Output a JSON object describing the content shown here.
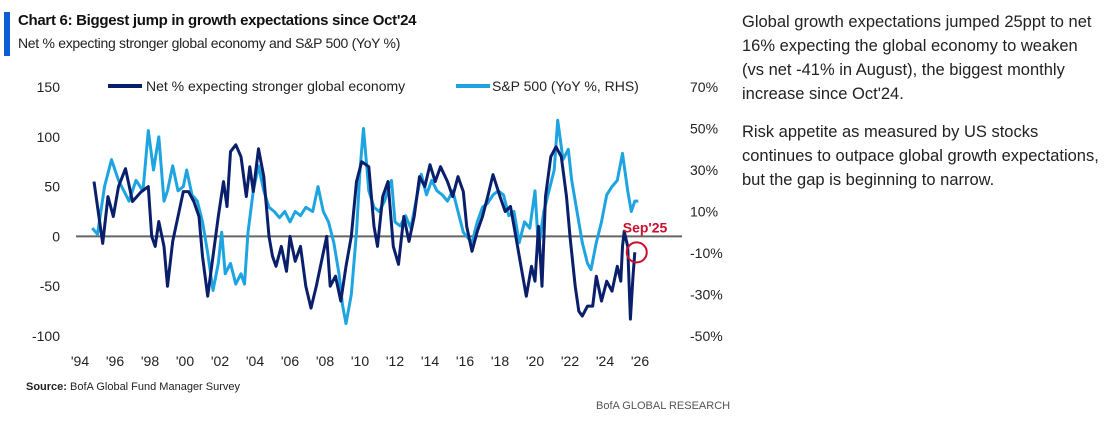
{
  "header": {
    "title": "Chart 6: Biggest jump in growth expectations since Oct'24",
    "subtitle": "Net % expecting stronger global economy and S&P 500 (YoY %)"
  },
  "footer": {
    "source_label": "Source:",
    "source_text": "BofA Global Fund Manager Survey",
    "brand": "BofA GLOBAL RESEARCH"
  },
  "commentary": [
    "Global growth expectations jumped 25ppt to net 16% expecting the global economy to weaken (vs net -41% in August), the biggest monthly increase since Oct'24.",
    "Risk appetite as measured by US stocks continues to outpace global growth expectations, but the gap is beginning to narrow."
  ],
  "chart_data": {
    "type": "line",
    "title": "Chart 6: Biggest jump in growth expectations since Oct'24",
    "legend_placement": "top",
    "x_ticks": [
      "'94",
      "'96",
      "'98",
      "'00",
      "'02",
      "'04",
      "'06",
      "'08",
      "'10",
      "'12",
      "'14",
      "'16",
      "'18",
      "'20",
      "'22",
      "'24",
      "'26"
    ],
    "x_range": [
      1994,
      2026
    ],
    "y_left": {
      "ticks": [
        "150",
        "100",
        "50",
        "0",
        "-50",
        "-100"
      ],
      "range": [
        -100,
        150
      ]
    },
    "y_right": {
      "ticks": [
        "70%",
        "50%",
        "30%",
        "10%",
        "-10%",
        "-30%",
        "-50%"
      ],
      "range": [
        -50,
        70
      ]
    },
    "annotation": {
      "label": "Sep'25",
      "x": 2025.7,
      "y": -16
    },
    "colors": {
      "net": "#0a1f6b",
      "spx": "#1ea4e0",
      "annotation": "#c8102e",
      "zero": "#666666"
    },
    "series": [
      {
        "name": "Net % expecting stronger global economy",
        "axis": "left",
        "points": [
          [
            1994.8,
            55
          ],
          [
            1995.0,
            30
          ],
          [
            1995.3,
            -7
          ],
          [
            1995.6,
            40
          ],
          [
            1995.9,
            20
          ],
          [
            1996.2,
            50
          ],
          [
            1996.6,
            68
          ],
          [
            1997.0,
            35
          ],
          [
            1997.5,
            45
          ],
          [
            1997.9,
            50
          ],
          [
            1998.1,
            0
          ],
          [
            1998.3,
            -10
          ],
          [
            1998.5,
            15
          ],
          [
            1998.8,
            -10
          ],
          [
            1999.0,
            -50
          ],
          [
            1999.3,
            -5
          ],
          [
            1999.6,
            20
          ],
          [
            1999.9,
            45
          ],
          [
            2000.2,
            45
          ],
          [
            2000.5,
            35
          ],
          [
            2000.8,
            20
          ],
          [
            2001.0,
            -20
          ],
          [
            2001.3,
            -60
          ],
          [
            2001.6,
            -20
          ],
          [
            2001.9,
            20
          ],
          [
            2002.2,
            55
          ],
          [
            2002.4,
            30
          ],
          [
            2002.6,
            85
          ],
          [
            2002.9,
            92
          ],
          [
            2003.2,
            80
          ],
          [
            2003.5,
            40
          ],
          [
            2003.7,
            70
          ],
          [
            2003.9,
            45
          ],
          [
            2004.2,
            88
          ],
          [
            2004.5,
            60
          ],
          [
            2004.8,
            0
          ],
          [
            2005.0,
            -20
          ],
          [
            2005.2,
            -30
          ],
          [
            2005.5,
            -10
          ],
          [
            2005.8,
            -35
          ],
          [
            2006.0,
            0
          ],
          [
            2006.3,
            -25
          ],
          [
            2006.6,
            -10
          ],
          [
            2006.9,
            -50
          ],
          [
            2007.2,
            -72
          ],
          [
            2007.5,
            -50
          ],
          [
            2007.8,
            -25
          ],
          [
            2008.1,
            0
          ],
          [
            2008.3,
            -50
          ],
          [
            2008.6,
            -40
          ],
          [
            2008.9,
            -65
          ],
          [
            2009.2,
            -30
          ],
          [
            2009.5,
            0
          ],
          [
            2009.8,
            55
          ],
          [
            2010.1,
            75
          ],
          [
            2010.5,
            70
          ],
          [
            2010.8,
            10
          ],
          [
            2011.0,
            -10
          ],
          [
            2011.3,
            40
          ],
          [
            2011.6,
            55
          ],
          [
            2011.9,
            -10
          ],
          [
            2012.2,
            -28
          ],
          [
            2012.5,
            20
          ],
          [
            2012.8,
            -5
          ],
          [
            2013.1,
            20
          ],
          [
            2013.4,
            60
          ],
          [
            2013.7,
            50
          ],
          [
            2014.0,
            72
          ],
          [
            2014.3,
            55
          ],
          [
            2014.6,
            70
          ],
          [
            2015.0,
            55
          ],
          [
            2015.3,
            40
          ],
          [
            2015.6,
            60
          ],
          [
            2015.9,
            45
          ],
          [
            2016.1,
            10
          ],
          [
            2016.4,
            -15
          ],
          [
            2016.7,
            5
          ],
          [
            2017.0,
            20
          ],
          [
            2017.3,
            40
          ],
          [
            2017.6,
            62
          ],
          [
            2018.0,
            40
          ],
          [
            2018.3,
            25
          ],
          [
            2018.6,
            30
          ],
          [
            2018.9,
            0
          ],
          [
            2019.2,
            -30
          ],
          [
            2019.5,
            -60
          ],
          [
            2019.8,
            -30
          ],
          [
            2020.0,
            -45
          ],
          [
            2020.2,
            10
          ],
          [
            2020.4,
            -50
          ],
          [
            2020.6,
            40
          ],
          [
            2020.9,
            80
          ],
          [
            2021.2,
            90
          ],
          [
            2021.5,
            80
          ],
          [
            2021.8,
            40
          ],
          [
            2022.0,
            0
          ],
          [
            2022.3,
            -50
          ],
          [
            2022.5,
            -75
          ],
          [
            2022.7,
            -80
          ],
          [
            2023.0,
            -70
          ],
          [
            2023.3,
            -70
          ],
          [
            2023.5,
            -40
          ],
          [
            2023.8,
            -65
          ],
          [
            2024.1,
            -45
          ],
          [
            2024.4,
            -55
          ],
          [
            2024.7,
            -30
          ],
          [
            2024.9,
            -45
          ],
          [
            2025.0,
            -10
          ],
          [
            2025.1,
            5
          ],
          [
            2025.3,
            -10
          ],
          [
            2025.45,
            -83
          ],
          [
            2025.6,
            -40
          ],
          [
            2025.7,
            -16
          ]
        ]
      },
      {
        "name": "S&P 500 (YoY %, RHS)",
        "axis": "right",
        "points": [
          [
            1994.7,
            2
          ],
          [
            1995.0,
            -1
          ],
          [
            1995.4,
            22
          ],
          [
            1995.8,
            35
          ],
          [
            1996.2,
            25
          ],
          [
            1996.5,
            20
          ],
          [
            1996.8,
            15
          ],
          [
            1997.2,
            25
          ],
          [
            1997.6,
            20
          ],
          [
            1997.9,
            49
          ],
          [
            1998.2,
            30
          ],
          [
            1998.5,
            46
          ],
          [
            1998.8,
            15
          ],
          [
            1999.0,
            20
          ],
          [
            1999.3,
            32
          ],
          [
            1999.6,
            20
          ],
          [
            1999.9,
            22
          ],
          [
            2000.1,
            30
          ],
          [
            2000.4,
            18
          ],
          [
            2000.7,
            15
          ],
          [
            2001.0,
            5
          ],
          [
            2001.3,
            -10
          ],
          [
            2001.6,
            -28
          ],
          [
            2001.9,
            -15
          ],
          [
            2002.1,
            0
          ],
          [
            2002.3,
            -20
          ],
          [
            2002.6,
            -15
          ],
          [
            2002.9,
            -25
          ],
          [
            2003.2,
            -20
          ],
          [
            2003.4,
            -25
          ],
          [
            2003.6,
            0
          ],
          [
            2003.9,
            20
          ],
          [
            2004.2,
            32
          ],
          [
            2004.5,
            20
          ],
          [
            2004.8,
            12
          ],
          [
            2005.1,
            10
          ],
          [
            2005.4,
            7
          ],
          [
            2005.7,
            10
          ],
          [
            2006.0,
            5
          ],
          [
            2006.3,
            10
          ],
          [
            2006.6,
            8
          ],
          [
            2006.9,
            12
          ],
          [
            2007.3,
            10
          ],
          [
            2007.6,
            22
          ],
          [
            2007.9,
            10
          ],
          [
            2008.2,
            5
          ],
          [
            2008.5,
            -5
          ],
          [
            2008.8,
            -20
          ],
          [
            2009.0,
            -35
          ],
          [
            2009.2,
            -44
          ],
          [
            2009.5,
            -30
          ],
          [
            2009.8,
            0
          ],
          [
            2010.0,
            30
          ],
          [
            2010.2,
            50
          ],
          [
            2010.5,
            20
          ],
          [
            2010.8,
            12
          ],
          [
            2011.1,
            10
          ],
          [
            2011.4,
            15
          ],
          [
            2011.8,
            25
          ],
          [
            2012.0,
            5
          ],
          [
            2012.3,
            3
          ],
          [
            2012.6,
            8
          ],
          [
            2012.9,
            2
          ],
          [
            2013.2,
            15
          ],
          [
            2013.5,
            28
          ],
          [
            2013.8,
            18
          ],
          [
            2014.1,
            25
          ],
          [
            2014.4,
            20
          ],
          [
            2014.7,
            18
          ],
          [
            2015.0,
            15
          ],
          [
            2015.3,
            20
          ],
          [
            2015.6,
            10
          ],
          [
            2015.9,
            0
          ],
          [
            2016.1,
            -2
          ],
          [
            2016.4,
            -5
          ],
          [
            2016.7,
            5
          ],
          [
            2017.0,
            12
          ],
          [
            2017.3,
            14
          ],
          [
            2017.6,
            18
          ],
          [
            2017.9,
            20
          ],
          [
            2018.2,
            18
          ],
          [
            2018.5,
            8
          ],
          [
            2018.8,
            10
          ],
          [
            2019.1,
            -5
          ],
          [
            2019.4,
            5
          ],
          [
            2019.7,
            2
          ],
          [
            2020.0,
            20
          ],
          [
            2020.2,
            -8
          ],
          [
            2020.5,
            10
          ],
          [
            2020.8,
            20
          ],
          [
            2021.1,
            30
          ],
          [
            2021.3,
            54
          ],
          [
            2021.6,
            35
          ],
          [
            2021.9,
            40
          ],
          [
            2022.1,
            25
          ],
          [
            2022.4,
            10
          ],
          [
            2022.7,
            -5
          ],
          [
            2023.0,
            -15
          ],
          [
            2023.2,
            -18
          ],
          [
            2023.5,
            -5
          ],
          [
            2023.8,
            5
          ],
          [
            2024.1,
            18
          ],
          [
            2024.4,
            22
          ],
          [
            2024.7,
            25
          ],
          [
            2025.0,
            38
          ],
          [
            2025.3,
            20
          ],
          [
            2025.5,
            10
          ],
          [
            2025.7,
            15
          ],
          [
            2025.9,
            15
          ]
        ]
      }
    ]
  }
}
